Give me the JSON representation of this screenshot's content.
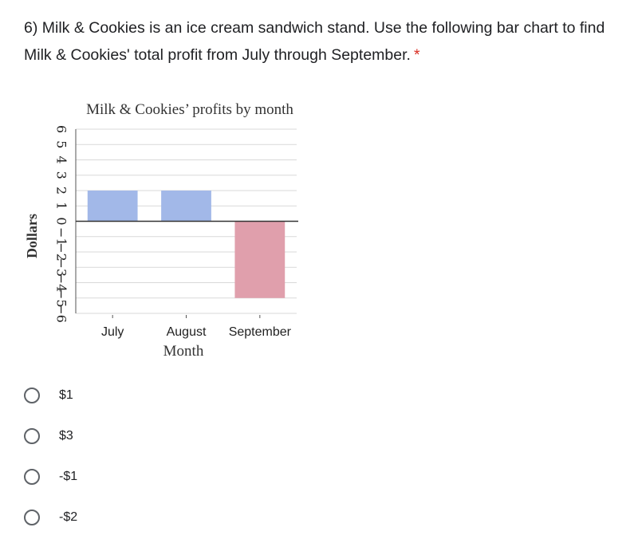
{
  "question": {
    "text": "6) Milk & Cookies is an ice cream sandwich stand. Use the following bar chart to find Milk & Cookies' total profit from July through September.",
    "required_marker": "*"
  },
  "chart_data": {
    "type": "bar",
    "title": "Milk & Cookies’ profits by month",
    "xlabel": "Month",
    "ylabel": "Dollars",
    "categories": [
      "July",
      "August",
      "September"
    ],
    "values": [
      2,
      2,
      -5
    ],
    "ylim": [
      -6,
      6
    ],
    "yticks": [
      6,
      5,
      4,
      3,
      2,
      1,
      0,
      -1,
      -2,
      -3,
      -4,
      -5,
      -6
    ],
    "grid": true,
    "colors": {
      "positive": "#a2b8e8",
      "negative": "#e09fac",
      "grid": "#d9d9d9",
      "zero_line": "#333333"
    }
  },
  "options": [
    {
      "label": "$1"
    },
    {
      "label": "$3"
    },
    {
      "label": "-$1"
    },
    {
      "label": "-$2"
    }
  ]
}
